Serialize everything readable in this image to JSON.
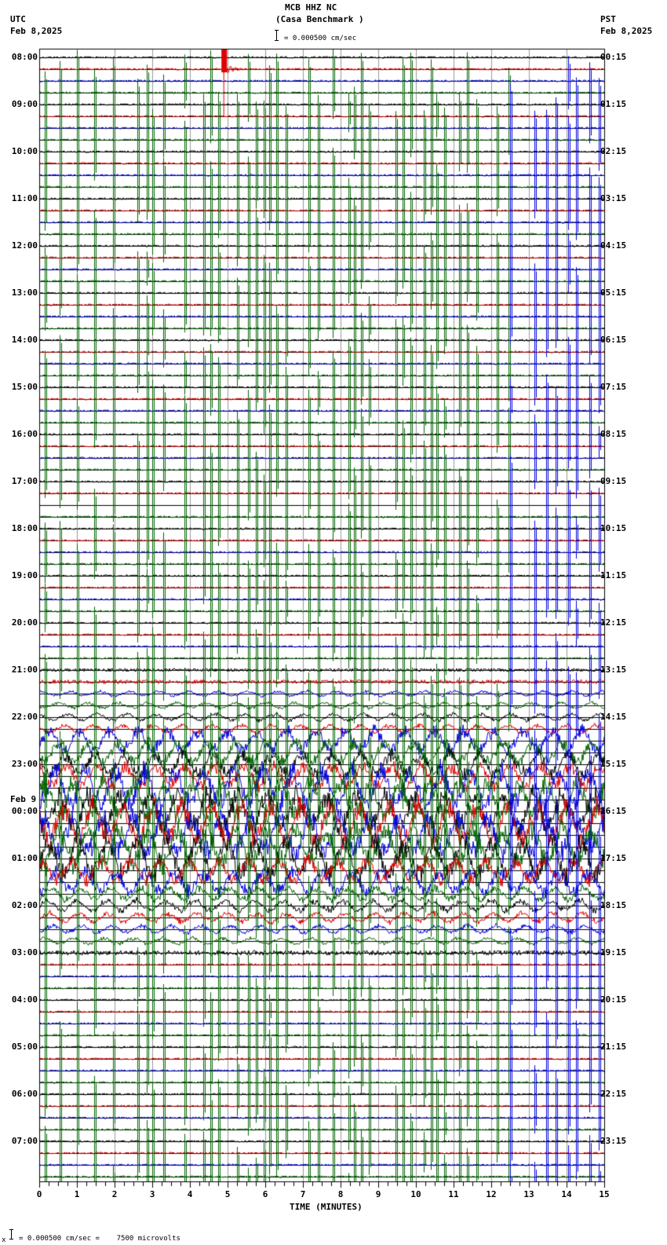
{
  "header": {
    "station_line": "MCB HHZ NC",
    "site_line": "(Casa Benchmark )",
    "scale_text": "= 0.000500 cm/sec",
    "left_tz": "UTC",
    "left_date": "Feb 8,2025",
    "right_tz": "PST",
    "right_date": "Feb 8,2025"
  },
  "footer": {
    "prefix": "x",
    "scale_text": "= 0.000500 cm/sec =    7500 microvolts"
  },
  "chart_data": {
    "type": "line",
    "title": "MCB HHZ NC (Casa Benchmark )",
    "xlabel": "TIME (MINUTES)",
    "ylabel": "",
    "xlim": [
      0,
      15
    ],
    "x_ticks": [
      "0",
      "1",
      "2",
      "3",
      "4",
      "5",
      "6",
      "7",
      "8",
      "9",
      "10",
      "11",
      "12",
      "13",
      "14",
      "15"
    ],
    "grid": true,
    "traces_per_hour": 4,
    "trace_colors": [
      "#000000",
      "#dd0000",
      "#0000dd",
      "#006400"
    ],
    "left_labels": [
      {
        "row": 0,
        "text": "08:00"
      },
      {
        "row": 4,
        "text": "09:00"
      },
      {
        "row": 8,
        "text": "10:00"
      },
      {
        "row": 12,
        "text": "11:00"
      },
      {
        "row": 16,
        "text": "12:00"
      },
      {
        "row": 20,
        "text": "13:00"
      },
      {
        "row": 24,
        "text": "14:00"
      },
      {
        "row": 28,
        "text": "15:00"
      },
      {
        "row": 32,
        "text": "16:00"
      },
      {
        "row": 36,
        "text": "17:00"
      },
      {
        "row": 40,
        "text": "18:00"
      },
      {
        "row": 44,
        "text": "19:00"
      },
      {
        "row": 48,
        "text": "20:00"
      },
      {
        "row": 52,
        "text": "21:00"
      },
      {
        "row": 56,
        "text": "22:00"
      },
      {
        "row": 60,
        "text": "23:00"
      },
      {
        "row": 64,
        "text": "00:00",
        "date_above": "Feb 9"
      },
      {
        "row": 68,
        "text": "01:00"
      },
      {
        "row": 72,
        "text": "02:00"
      },
      {
        "row": 76,
        "text": "03:00"
      },
      {
        "row": 80,
        "text": "04:00"
      },
      {
        "row": 84,
        "text": "05:00"
      },
      {
        "row": 88,
        "text": "06:00"
      },
      {
        "row": 92,
        "text": "07:00"
      }
    ],
    "right_labels": [
      "00:15",
      "01:15",
      "02:15",
      "03:15",
      "04:15",
      "05:15",
      "06:15",
      "07:15",
      "08:15",
      "09:15",
      "10:15",
      "11:15",
      "12:15",
      "13:15",
      "14:15",
      "15:15",
      "16:15",
      "17:15",
      "18:15",
      "19:15",
      "20:15",
      "21:15",
      "22:15",
      "23:15"
    ],
    "total_traces": 96,
    "annotations": [
      {
        "desc": "local event (red burst)",
        "trace_row": 1,
        "minute": 4.9,
        "amplitude": "clipped"
      },
      {
        "desc": "flatlined trace",
        "trace_row": 38
      },
      {
        "desc": "high-noise period",
        "from_row": 58,
        "to_row": 76
      }
    ],
    "recurring_spike_minutes_green": [
      0.15,
      0.55,
      1.0,
      1.45,
      1.95,
      2.6,
      2.85,
      3.0,
      3.3,
      3.85,
      4.35,
      4.55,
      4.75,
      5.25,
      5.55,
      5.75,
      5.95,
      6.1,
      6.3,
      6.55,
      7.15,
      7.4,
      7.8,
      8.2,
      8.35,
      8.55,
      8.75,
      9.45,
      9.65,
      9.85,
      10.2,
      10.4,
      10.55,
      10.75,
      11.15,
      11.35,
      11.6,
      12.15,
      12.45
    ],
    "recurring_spike_minutes_blue": [
      12.5,
      13.15,
      13.45,
      13.7,
      14.05,
      14.25,
      14.6,
      14.85
    ]
  }
}
